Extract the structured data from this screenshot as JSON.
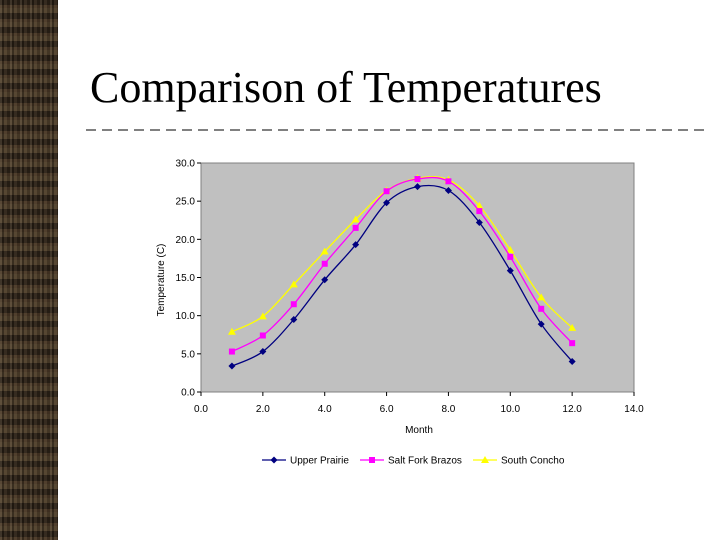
{
  "slide": {
    "title": "Comparison of Temperatures",
    "stripe_color": "#3a2d20"
  },
  "chart_data": {
    "type": "line",
    "xlabel": "Month",
    "ylabel": "Temperature (C)",
    "xlim": [
      0,
      14
    ],
    "ylim": [
      0,
      30
    ],
    "xticks": [
      "0.0",
      "2.0",
      "4.0",
      "6.0",
      "8.0",
      "10.0",
      "12.0",
      "14.0"
    ],
    "yticks": [
      "0.0",
      "5.0",
      "10.0",
      "15.0",
      "20.0",
      "25.0",
      "30.0"
    ],
    "grid": false,
    "legend": "bottom",
    "plot_background": "#c0c0c0",
    "series": [
      {
        "name": "Upper Prairie",
        "color": "#000080",
        "marker": "diamond",
        "x": [
          1,
          2,
          3,
          4,
          5,
          6,
          7,
          8,
          9,
          10,
          11,
          12
        ],
        "y": [
          3.4,
          5.3,
          9.5,
          14.7,
          19.3,
          24.8,
          26.9,
          26.4,
          22.2,
          15.9,
          8.9,
          4.0
        ]
      },
      {
        "name": "Salt Fork Brazos",
        "color": "#ff00ff",
        "marker": "square",
        "x": [
          1,
          2,
          3,
          4,
          5,
          6,
          7,
          8,
          9,
          10,
          11,
          12
        ],
        "y": [
          5.3,
          7.4,
          11.5,
          16.8,
          21.5,
          26.3,
          27.9,
          27.6,
          23.7,
          17.7,
          10.9,
          6.4
        ]
      },
      {
        "name": "South Concho",
        "color": "#ffff00",
        "marker": "triangle",
        "x": [
          1,
          2,
          3,
          4,
          5,
          6,
          7,
          8,
          9,
          10,
          11,
          12
        ],
        "y": [
          7.9,
          9.9,
          14.1,
          18.4,
          22.6,
          26.4,
          28.0,
          27.8,
          24.4,
          18.6,
          12.4,
          8.4
        ]
      }
    ]
  }
}
